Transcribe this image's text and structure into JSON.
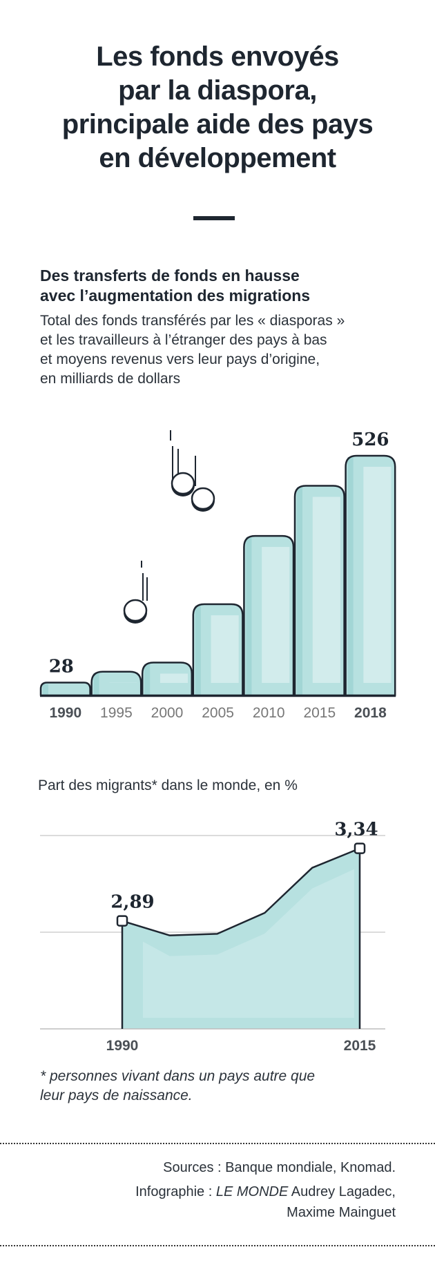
{
  "header": {
    "title_lines": [
      "Les fonds envoyés",
      "par la diaspora,",
      "principale aide des pays",
      "en développement"
    ]
  },
  "chart1_text": {
    "subtitle_lines": [
      "Des transferts de fonds en hausse",
      "avec l’augmentation des migrations"
    ],
    "description_lines": [
      "Total des fonds transférés par les « diasporas »",
      "et les travailleurs à l’étranger des pays à bas",
      "et moyens revenus vers leur pays d’origine,",
      "en milliards de dollars"
    ]
  },
  "chart2_text": {
    "title": "Part des migrants* dans le monde, en %"
  },
  "footnote_lines": [
    "* personnes vivant dans un pays autre que",
    "leur pays de naissance."
  ],
  "footer": {
    "sources": "Sources : Banque mondiale, Knomad.",
    "credits_prefix": "Infographie :",
    "credits_brand": "LE MONDE",
    "credits_names_line1": "Audrey Lagadec,",
    "credits_names_line2": "Maxime Mainguet"
  },
  "colors": {
    "bar_fill": "#b7e1e0",
    "bar_highlight": "#d2ecec",
    "bar_shadow": "#a2d6d5",
    "outline": "#1e2630",
    "text": "#1e2630",
    "muted": "#777777"
  },
  "chart_data": [
    {
      "type": "bar",
      "categories": [
        "1990",
        "1995",
        "2000",
        "2005",
        "2010",
        "2015",
        "2018"
      ],
      "values": [
        28,
        52,
        72,
        200,
        350,
        460,
        526
      ],
      "data_labels": [
        {
          "category": "1990",
          "text": "28"
        },
        {
          "category": "2018",
          "text": "526"
        }
      ],
      "bold_categories": [
        "1990",
        "2018"
      ],
      "ylim": [
        0,
        526
      ],
      "grid": false
    },
    {
      "type": "area",
      "x": [
        1990,
        1995,
        2000,
        2005,
        2010,
        2015
      ],
      "y": [
        2.89,
        2.8,
        2.81,
        2.94,
        3.22,
        3.34
      ],
      "x_tick_labels": [
        "1990",
        "2015"
      ],
      "data_labels": [
        {
          "x": 1990,
          "text": "2,89"
        },
        {
          "x": 2015,
          "text": "3,34"
        }
      ],
      "ylim": [
        2.22,
        3.42
      ],
      "grid": true
    }
  ]
}
